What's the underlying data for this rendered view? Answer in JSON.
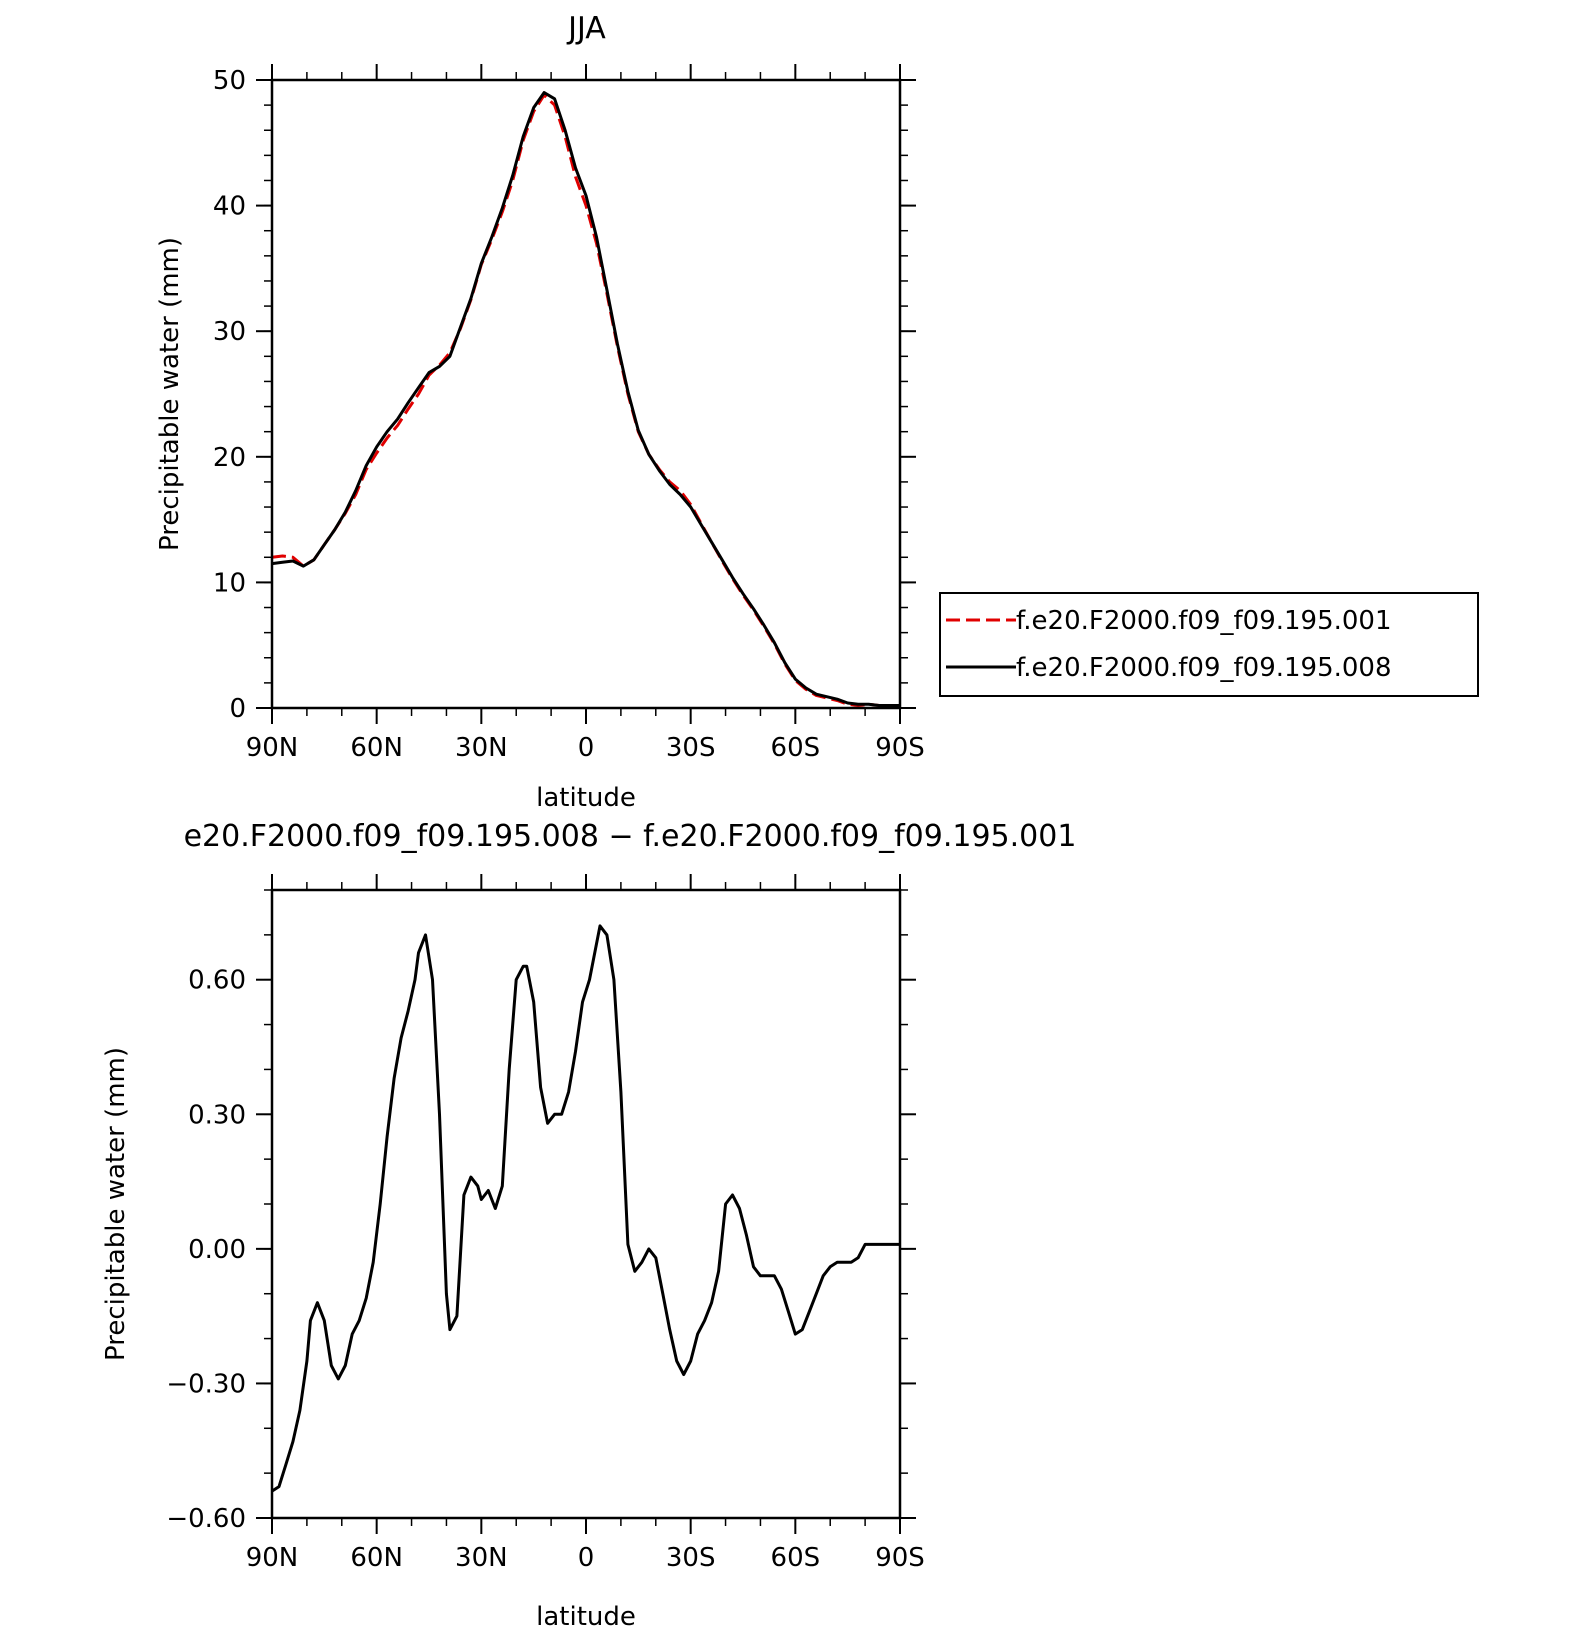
{
  "chart_data": [
    {
      "type": "line",
      "title": "JJA",
      "xlabel": "latitude",
      "ylabel": "Precipitable water (mm)",
      "xlim": [
        90,
        -90
      ],
      "ylim": [
        0,
        50
      ],
      "x_ticks": [
        90,
        60,
        30,
        0,
        -30,
        -60,
        -90
      ],
      "x_tick_labels": [
        "90N",
        "60N",
        "30N",
        "0",
        "30S",
        "60S",
        "90S"
      ],
      "y_ticks": [
        0,
        10,
        20,
        30,
        40,
        50
      ],
      "y_tick_labels": [
        "0",
        "10",
        "20",
        "30",
        "40",
        "50"
      ],
      "legend_placement": "right",
      "series": [
        {
          "name": "f.e20.F2000.f09_f09.195.001",
          "color": "#e00000",
          "style": "dashed",
          "x": [
            90,
            87,
            84,
            81,
            78,
            75,
            72,
            69,
            66,
            63,
            60,
            57,
            54,
            51,
            48,
            45,
            42,
            39,
            36,
            33,
            30,
            27,
            24,
            21,
            18,
            15,
            12,
            9,
            6,
            3,
            0,
            -3,
            -6,
            -9,
            -12,
            -15,
            -18,
            -21,
            -24,
            -27,
            -30,
            -33,
            -36,
            -39,
            -42,
            -45,
            -48,
            -51,
            -54,
            -57,
            -60,
            -63,
            -66,
            -69,
            -72,
            -75,
            -78,
            -81,
            -84,
            -87,
            -90
          ],
          "values": [
            12.0,
            12.1,
            12.0,
            11.3,
            11.8,
            13.0,
            14.2,
            15.5,
            17.0,
            19.0,
            20.3,
            21.5,
            22.5,
            23.8,
            25.0,
            26.5,
            27.3,
            28.3,
            30.2,
            32.5,
            35.3,
            37.3,
            39.5,
            42.0,
            45.2,
            47.5,
            48.8,
            48.0,
            45.5,
            42.3,
            40.0,
            37.0,
            33.0,
            28.8,
            25.0,
            22.0,
            20.2,
            19.0,
            18.0,
            17.3,
            16.2,
            14.7,
            13.2,
            11.7,
            10.3,
            9.0,
            7.8,
            6.5,
            5.1,
            3.5,
            2.2,
            1.5,
            1.0,
            0.8,
            0.6,
            0.3,
            0.2,
            0.3,
            0.2,
            0.2,
            0.2
          ]
        },
        {
          "name": "f.e20.F2000.f09_f09.195.008",
          "color": "#000000",
          "style": "solid",
          "x": [
            90,
            87,
            84,
            81,
            78,
            75,
            72,
            69,
            66,
            63,
            60,
            57,
            54,
            51,
            48,
            45,
            42,
            39,
            36,
            33,
            30,
            27,
            24,
            21,
            18,
            15,
            12,
            9,
            6,
            3,
            0,
            -3,
            -6,
            -9,
            -12,
            -15,
            -18,
            -21,
            -24,
            -27,
            -30,
            -33,
            -36,
            -39,
            -42,
            -45,
            -48,
            -51,
            -54,
            -57,
            -60,
            -63,
            -66,
            -69,
            -72,
            -75,
            -78,
            -81,
            -84,
            -87,
            -90
          ],
          "values": [
            11.5,
            11.6,
            11.7,
            11.3,
            11.8,
            13.0,
            14.2,
            15.6,
            17.3,
            19.3,
            20.8,
            22.0,
            23.0,
            24.3,
            25.5,
            26.7,
            27.2,
            28.0,
            30.3,
            32.6,
            35.4,
            37.5,
            39.8,
            42.4,
            45.5,
            47.8,
            49.0,
            48.5,
            46.0,
            43.0,
            40.8,
            37.5,
            33.3,
            29.0,
            25.2,
            22.1,
            20.2,
            18.9,
            17.8,
            17.0,
            16.0,
            14.6,
            13.2,
            11.8,
            10.4,
            9.1,
            7.9,
            6.6,
            5.2,
            3.6,
            2.3,
            1.6,
            1.1,
            0.9,
            0.7,
            0.4,
            0.3,
            0.3,
            0.2,
            0.2,
            0.2
          ]
        }
      ]
    },
    {
      "type": "line",
      "title": "e20.F2000.f09_f09.195.008 − f.e20.F2000.f09_f09.195.001",
      "xlabel": "latitude",
      "ylabel": "Precipitable water (mm)",
      "xlim": [
        90,
        -90
      ],
      "ylim": [
        -0.6,
        0.8
      ],
      "x_ticks": [
        90,
        60,
        30,
        0,
        -30,
        -60,
        -90
      ],
      "x_tick_labels": [
        "90N",
        "60N",
        "30N",
        "0",
        "30S",
        "60S",
        "90S"
      ],
      "y_ticks": [
        -0.6,
        -0.3,
        0.0,
        0.3,
        0.6
      ],
      "y_tick_labels": [
        "−0.60",
        "−0.30",
        "0.00",
        "0.30",
        "0.60"
      ],
      "series": [
        {
          "color": "#000000",
          "style": "solid",
          "x": [
            90,
            88,
            86,
            84,
            82,
            80,
            79,
            77,
            75,
            73,
            71,
            69,
            67,
            65,
            63,
            61,
            59,
            57,
            55,
            53,
            51,
            49,
            48,
            46,
            44,
            42,
            40,
            39,
            37,
            35,
            33,
            31,
            30,
            28,
            26,
            24,
            22,
            20,
            18,
            17,
            15,
            13,
            11,
            9,
            7,
            5,
            3,
            1,
            -1,
            -3,
            -4,
            -6,
            -8,
            -10,
            -12,
            -14,
            -16,
            -18,
            -20,
            -22,
            -24,
            -26,
            -28,
            -30,
            -32,
            -34,
            -36,
            -38,
            -40,
            -42,
            -44,
            -46,
            -48,
            -50,
            -52,
            -54,
            -56,
            -58,
            -60,
            -62,
            -64,
            -66,
            -68,
            -70,
            -72,
            -74,
            -76,
            -78,
            -80,
            -82,
            -84,
            -86,
            -88,
            -90
          ],
          "values": [
            -0.54,
            -0.53,
            -0.48,
            -0.43,
            -0.36,
            -0.25,
            -0.16,
            -0.12,
            -0.16,
            -0.26,
            -0.29,
            -0.26,
            -0.19,
            -0.16,
            -0.11,
            -0.03,
            0.1,
            0.25,
            0.38,
            0.47,
            0.53,
            0.6,
            0.66,
            0.7,
            0.6,
            0.3,
            -0.1,
            -0.18,
            -0.15,
            0.12,
            0.16,
            0.14,
            0.11,
            0.13,
            0.09,
            0.14,
            0.4,
            0.6,
            0.63,
            0.63,
            0.55,
            0.36,
            0.28,
            0.3,
            0.3,
            0.35,
            0.44,
            0.55,
            0.6,
            0.68,
            0.72,
            0.7,
            0.6,
            0.35,
            0.01,
            -0.05,
            -0.03,
            0.0,
            -0.02,
            -0.1,
            -0.18,
            -0.25,
            -0.28,
            -0.25,
            -0.19,
            -0.16,
            -0.12,
            -0.05,
            0.1,
            0.12,
            0.09,
            0.03,
            -0.04,
            -0.06,
            -0.06,
            -0.06,
            -0.09,
            -0.14,
            -0.19,
            -0.18,
            -0.14,
            -0.1,
            -0.06,
            -0.04,
            -0.03,
            -0.03,
            -0.03,
            -0.02,
            0.01,
            0.01,
            0.01,
            0.01,
            0.01,
            0.01
          ]
        }
      ]
    }
  ]
}
